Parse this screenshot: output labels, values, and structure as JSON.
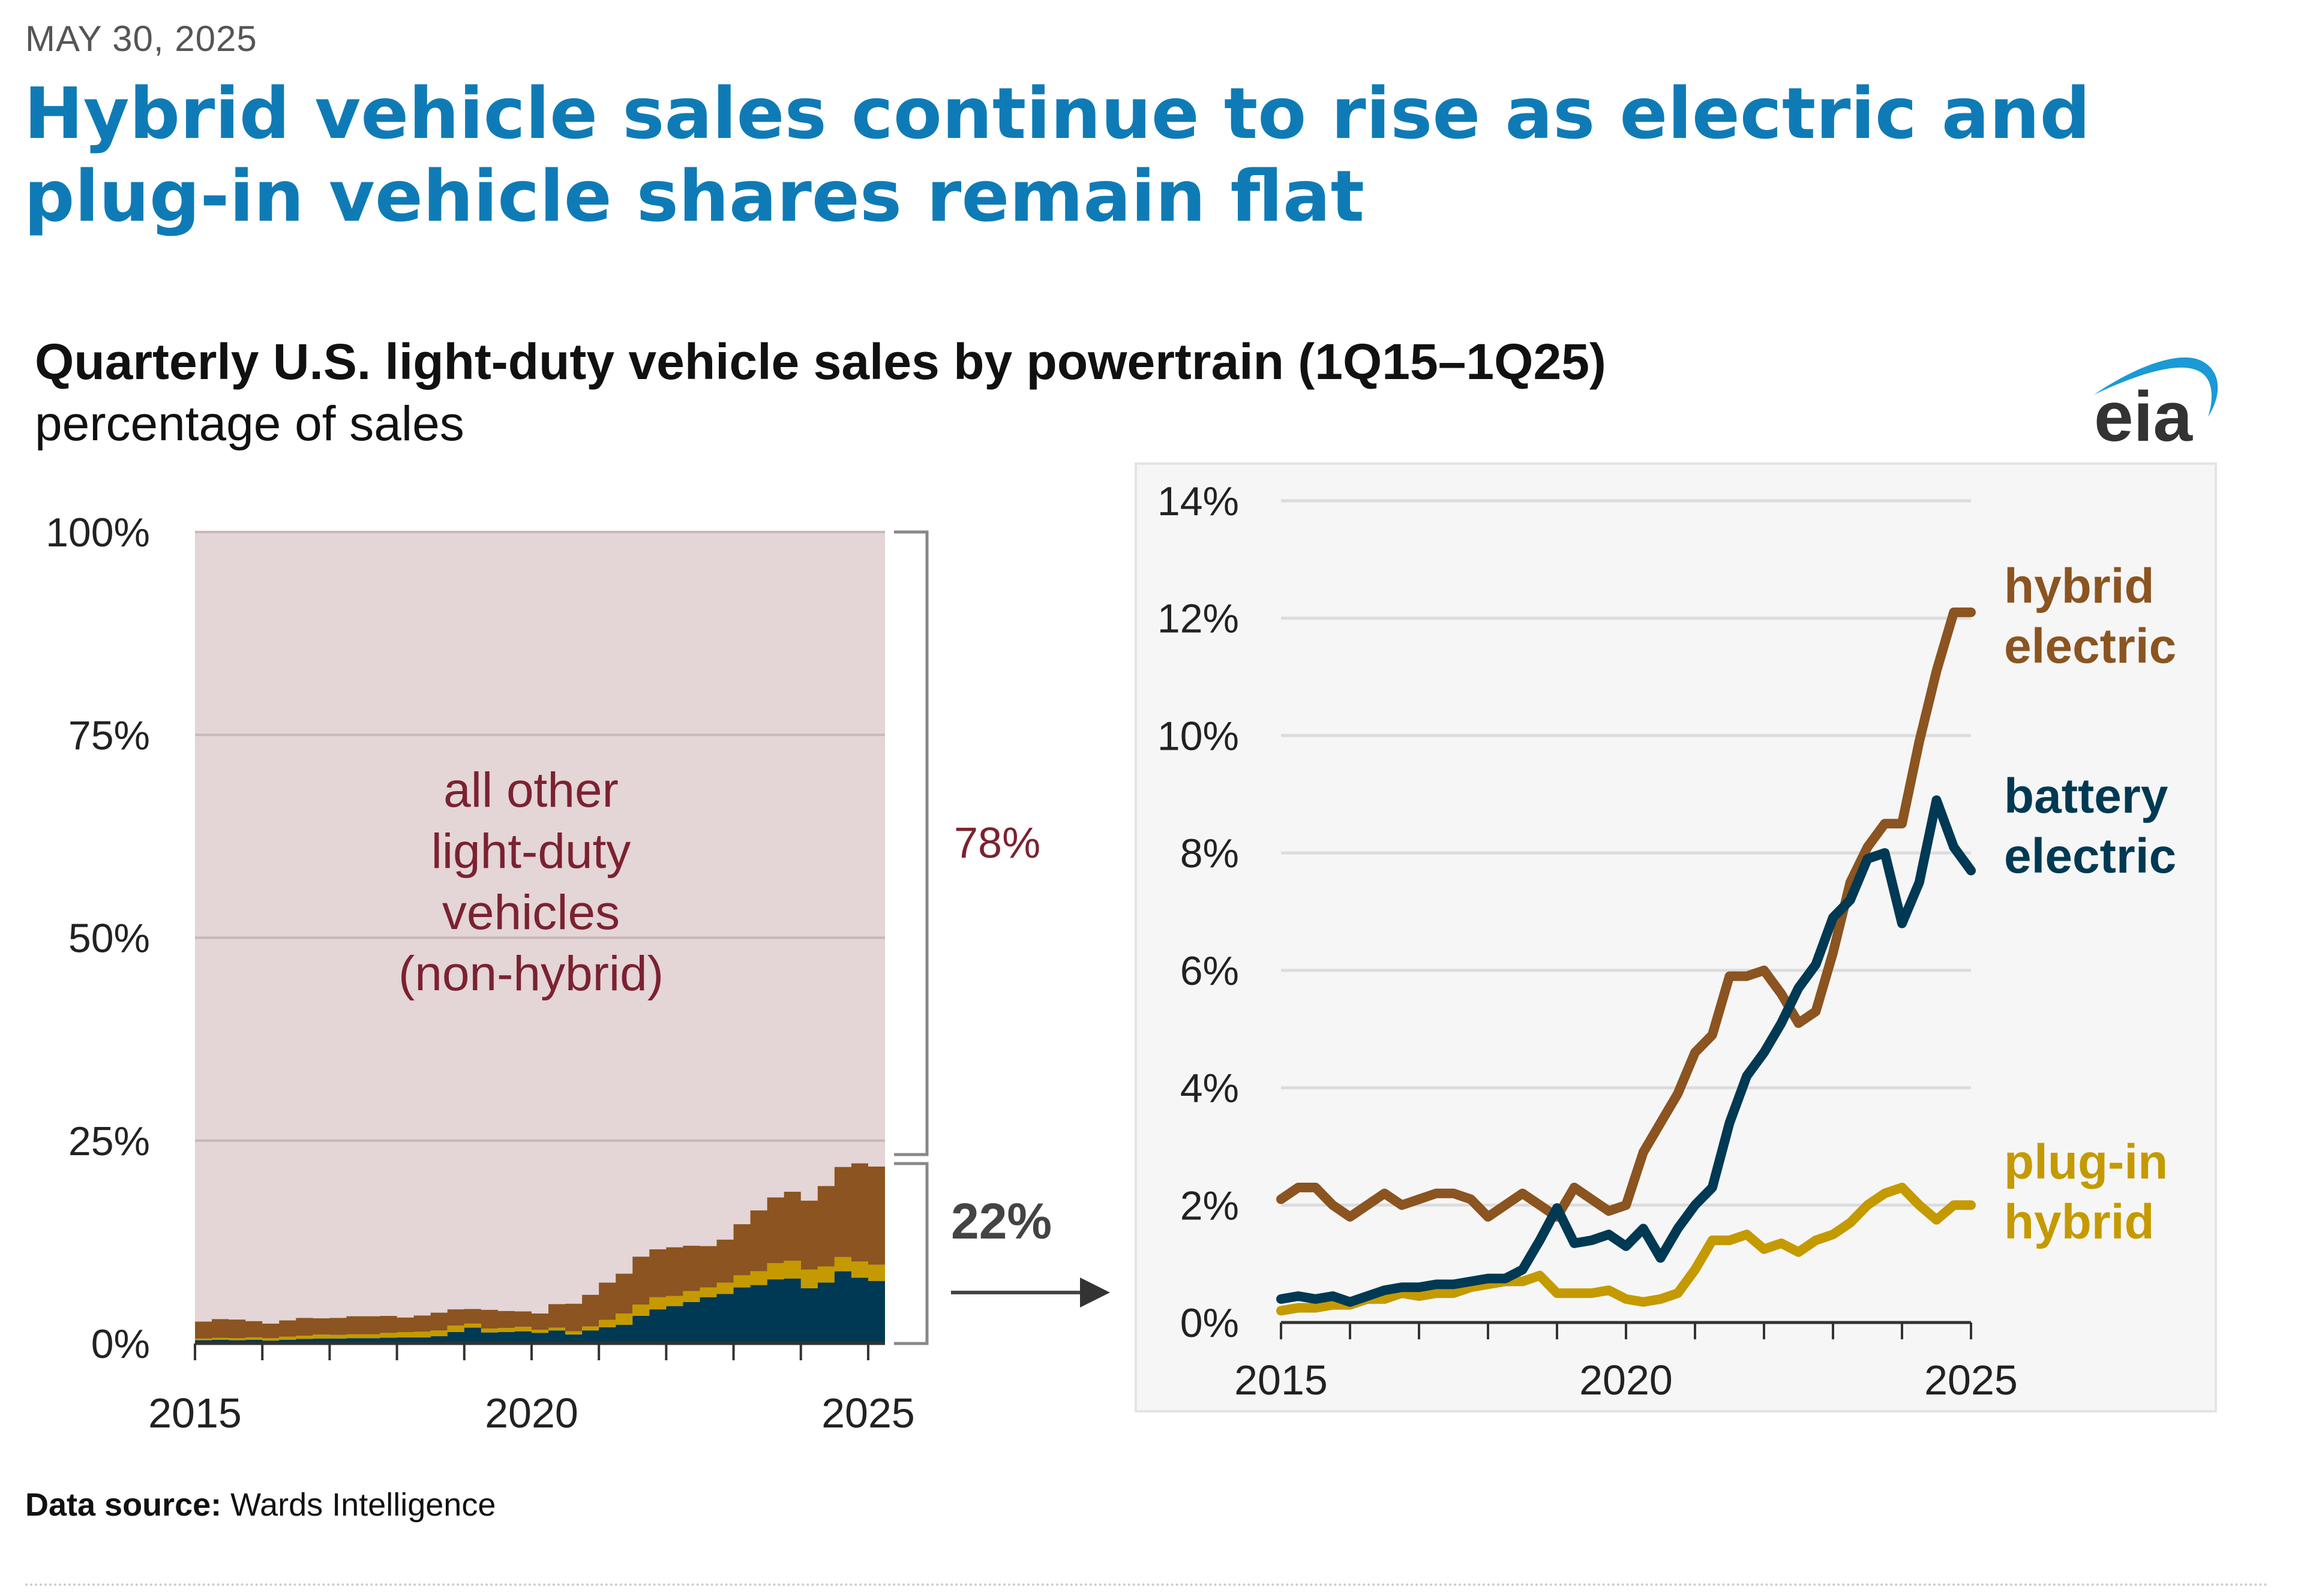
{
  "header": {
    "date": "MAY 30, 2025",
    "headline": "Hybrid vehicle sales continue to rise as electric and plug-in vehicle shares remain flat"
  },
  "chart_header": {
    "title": "Quarterly U.S. light-duty vehicle sales by powertrain (1Q15–1Q25)",
    "subtitle": "percentage of sales",
    "logo_text": "eia"
  },
  "footer": {
    "source_label": "Data source:",
    "source_value": "Wards Intelligence"
  },
  "colors": {
    "hybrid": "#8b5420",
    "battery": "#003953",
    "plugin": "#c49a00",
    "other_fill": "#e4d5d7",
    "other_text": "#7b2230",
    "headline": "#0f7bb6",
    "right_panel_bg": "#f6f6f6",
    "logo_arc": "#1a9ad6",
    "logo_text": "#333333"
  },
  "chart_data": [
    {
      "type": "area",
      "stacked": true,
      "step": true,
      "title": "",
      "ylabel": "percentage of sales",
      "ylim": [
        0,
        100
      ],
      "yticks": [
        "0%",
        "25%",
        "50%",
        "75%",
        "100%"
      ],
      "xticks": [
        "2015",
        "2020",
        "2025"
      ],
      "x_range": [
        "1Q15",
        "1Q25"
      ],
      "grid": true,
      "annotations": {
        "other_label": [
          "all other",
          "light-duty",
          "vehicles",
          "(non-hybrid)"
        ],
        "bracket_top_label": "78%",
        "bracket_bottom_label": "22%"
      },
      "series_order_bottom_to_top": [
        "battery electric",
        "plug-in hybrid",
        "hybrid electric",
        "all other light-duty vehicles (non-hybrid)"
      ]
    },
    {
      "type": "line",
      "title": "",
      "ylabel": "percentage of sales",
      "ylim": [
        0,
        14
      ],
      "yticks": [
        "0%",
        "2%",
        "4%",
        "6%",
        "8%",
        "10%",
        "12%",
        "14%"
      ],
      "xticks": [
        "2015",
        "2020",
        "2025"
      ],
      "grid": true,
      "legend": "right, direct labels",
      "x": [
        "1Q15",
        "2Q15",
        "3Q15",
        "4Q15",
        "1Q16",
        "2Q16",
        "3Q16",
        "4Q16",
        "1Q17",
        "2Q17",
        "3Q17",
        "4Q17",
        "1Q18",
        "2Q18",
        "3Q18",
        "4Q18",
        "1Q19",
        "2Q19",
        "3Q19",
        "4Q19",
        "1Q20",
        "2Q20",
        "3Q20",
        "4Q20",
        "1Q21",
        "2Q21",
        "3Q21",
        "4Q21",
        "1Q22",
        "2Q22",
        "3Q22",
        "4Q22",
        "1Q23",
        "2Q23",
        "3Q23",
        "4Q23",
        "1Q24",
        "2Q24",
        "3Q24",
        "4Q24",
        "1Q25"
      ],
      "series": [
        {
          "name": "hybrid electric",
          "label_lines": [
            "hybrid",
            "electric"
          ],
          "values": [
            2.1,
            2.3,
            2.3,
            2.0,
            1.8,
            2.0,
            2.2,
            2.0,
            2.1,
            2.2,
            2.2,
            2.1,
            1.8,
            2.0,
            2.2,
            2.0,
            1.8,
            2.3,
            2.1,
            1.9,
            2.0,
            2.9,
            3.4,
            3.9,
            4.6,
            4.9,
            5.9,
            5.9,
            6.0,
            5.6,
            5.1,
            5.3,
            6.3,
            7.5,
            8.1,
            8.5,
            8.5,
            9.9,
            11.1,
            12.1,
            12.1
          ]
        },
        {
          "name": "battery electric",
          "label_lines": [
            "battery",
            "electric"
          ],
          "values": [
            0.4,
            0.45,
            0.4,
            0.45,
            0.35,
            0.45,
            0.55,
            0.6,
            0.6,
            0.65,
            0.65,
            0.7,
            0.75,
            0.75,
            0.9,
            1.4,
            1.95,
            1.35,
            1.4,
            1.5,
            1.3,
            1.6,
            1.1,
            1.6,
            2.0,
            2.3,
            3.4,
            4.2,
            4.6,
            5.1,
            5.7,
            6.1,
            6.9,
            7.2,
            7.9,
            8.0,
            6.8,
            7.5,
            8.9,
            8.1,
            7.7
          ]
        },
        {
          "name": "plug-in hybrid",
          "label_lines": [
            "plug-in",
            "hybrid"
          ],
          "values": [
            0.2,
            0.25,
            0.25,
            0.3,
            0.3,
            0.4,
            0.4,
            0.5,
            0.45,
            0.5,
            0.5,
            0.6,
            0.65,
            0.7,
            0.7,
            0.8,
            0.5,
            0.5,
            0.5,
            0.55,
            0.4,
            0.35,
            0.4,
            0.5,
            0.9,
            1.4,
            1.4,
            1.5,
            1.25,
            1.35,
            1.2,
            1.4,
            1.5,
            1.7,
            2.0,
            2.2,
            2.3,
            2.0,
            1.75,
            2.0,
            2.0
          ]
        }
      ],
      "other_values_derived": "100 - (hybrid + battery + plugin)"
    }
  ]
}
